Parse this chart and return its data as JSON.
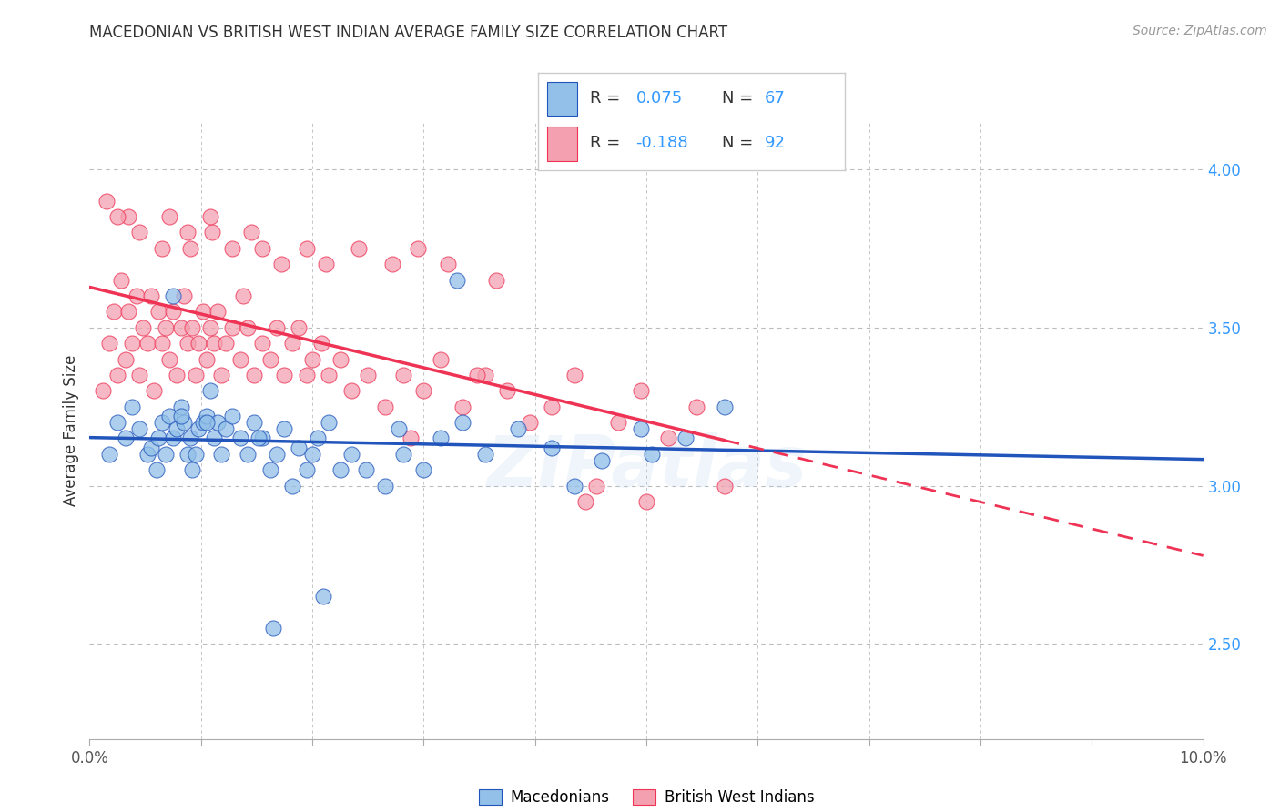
{
  "title": "MACEDONIAN VS BRITISH WEST INDIAN AVERAGE FAMILY SIZE CORRELATION CHART",
  "source": "Source: ZipAtlas.com",
  "ylabel": "Average Family Size",
  "xlim": [
    0.0,
    10.0
  ],
  "ylim": [
    2.2,
    4.15
  ],
  "yticks_right": [
    2.5,
    3.0,
    3.5,
    4.0
  ],
  "legend_blue_R": "0.075",
  "legend_blue_N": "67",
  "legend_pink_R": "-0.188",
  "legend_pink_N": "92",
  "label_macedonians": "Macedonians",
  "label_bwi": "British West Indians",
  "blue_color": "#92C0E8",
  "pink_color": "#F4A0B0",
  "trendline_blue": "#2255BB",
  "trendline_pink": "#EE3355",
  "background_color": "#FFFFFF",
  "grid_color": "#BBBBBB",
  "watermark": "ZIPatlas",
  "macedonians_x": [
    0.18,
    0.25,
    0.32,
    0.38,
    0.45,
    0.52,
    0.55,
    0.6,
    0.62,
    0.65,
    0.68,
    0.72,
    0.75,
    0.78,
    0.82,
    0.85,
    0.88,
    0.9,
    0.92,
    0.95,
    0.98,
    1.02,
    1.05,
    1.08,
    1.12,
    1.15,
    1.18,
    1.22,
    1.28,
    1.35,
    1.42,
    1.48,
    1.55,
    1.62,
    1.68,
    1.75,
    1.82,
    1.88,
    1.95,
    2.0,
    2.05,
    2.15,
    2.25,
    2.35,
    2.48,
    2.65,
    2.82,
    3.0,
    3.15,
    3.35,
    3.55,
    3.85,
    4.15,
    4.35,
    4.6,
    5.05,
    5.35,
    5.7,
    4.95,
    3.3,
    2.78,
    0.75,
    0.82,
    1.05,
    1.52,
    2.1,
    1.65
  ],
  "macedonians_y": [
    3.1,
    3.2,
    3.15,
    3.25,
    3.18,
    3.1,
    3.12,
    3.05,
    3.15,
    3.2,
    3.1,
    3.22,
    3.15,
    3.18,
    3.25,
    3.2,
    3.1,
    3.15,
    3.05,
    3.1,
    3.18,
    3.2,
    3.22,
    3.3,
    3.15,
    3.2,
    3.1,
    3.18,
    3.22,
    3.15,
    3.1,
    3.2,
    3.15,
    3.05,
    3.1,
    3.18,
    3.0,
    3.12,
    3.05,
    3.1,
    3.15,
    3.2,
    3.05,
    3.1,
    3.05,
    3.0,
    3.1,
    3.05,
    3.15,
    3.2,
    3.1,
    3.18,
    3.12,
    3.0,
    3.08,
    3.1,
    3.15,
    3.25,
    3.18,
    3.65,
    3.18,
    3.6,
    3.22,
    3.2,
    3.15,
    2.65,
    2.55
  ],
  "bwi_x": [
    0.12,
    0.18,
    0.22,
    0.25,
    0.28,
    0.32,
    0.35,
    0.38,
    0.42,
    0.45,
    0.48,
    0.52,
    0.55,
    0.58,
    0.62,
    0.65,
    0.68,
    0.72,
    0.75,
    0.78,
    0.82,
    0.85,
    0.88,
    0.92,
    0.95,
    0.98,
    1.02,
    1.05,
    1.08,
    1.12,
    1.15,
    1.18,
    1.22,
    1.28,
    1.35,
    1.42,
    1.48,
    1.55,
    1.62,
    1.68,
    1.75,
    1.82,
    1.88,
    1.95,
    2.0,
    2.08,
    2.15,
    2.25,
    2.35,
    2.5,
    2.65,
    2.82,
    3.0,
    3.15,
    3.35,
    3.55,
    3.75,
    3.95,
    4.15,
    4.35,
    4.55,
    4.75,
    4.95,
    5.2,
    5.45,
    5.7,
    3.48,
    2.88,
    1.38,
    0.35,
    0.72,
    0.9,
    1.1,
    1.55,
    0.15,
    0.25,
    0.45,
    0.65,
    0.88,
    1.08,
    1.28,
    1.45,
    1.72,
    1.95,
    2.12,
    2.42,
    2.72,
    2.95,
    3.22,
    3.65,
    4.45,
    5.0
  ],
  "bwi_y": [
    3.3,
    3.45,
    3.55,
    3.35,
    3.65,
    3.4,
    3.55,
    3.45,
    3.6,
    3.35,
    3.5,
    3.45,
    3.6,
    3.3,
    3.55,
    3.45,
    3.5,
    3.4,
    3.55,
    3.35,
    3.5,
    3.6,
    3.45,
    3.5,
    3.35,
    3.45,
    3.55,
    3.4,
    3.5,
    3.45,
    3.55,
    3.35,
    3.45,
    3.5,
    3.4,
    3.5,
    3.35,
    3.45,
    3.4,
    3.5,
    3.35,
    3.45,
    3.5,
    3.35,
    3.4,
    3.45,
    3.35,
    3.4,
    3.3,
    3.35,
    3.25,
    3.35,
    3.3,
    3.4,
    3.25,
    3.35,
    3.3,
    3.2,
    3.25,
    3.35,
    3.0,
    3.2,
    3.3,
    3.15,
    3.25,
    3.0,
    3.35,
    3.15,
    3.6,
    3.85,
    3.85,
    3.75,
    3.8,
    3.75,
    3.9,
    3.85,
    3.8,
    3.75,
    3.8,
    3.85,
    3.75,
    3.8,
    3.7,
    3.75,
    3.7,
    3.75,
    3.7,
    3.75,
    3.7,
    3.65,
    2.95,
    2.95
  ]
}
